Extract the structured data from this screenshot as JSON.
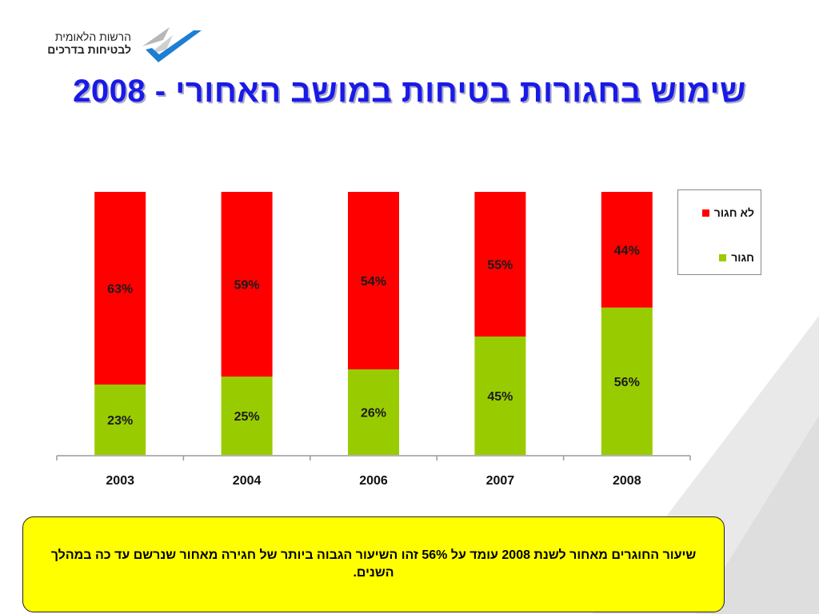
{
  "header": {
    "logo_line1": "הרשות הלאומית",
    "logo_line2": "לבטיחות בדרכים",
    "title": "שימוש בחגורות בטיחות במושב האחורי - 2008"
  },
  "chart_data": {
    "type": "bar",
    "stacked": true,
    "stack_mode": "percent",
    "categories": [
      "2003",
      "2004",
      "2006",
      "2007",
      "2008"
    ],
    "series": [
      {
        "name": "חגור",
        "color": "#99cc00",
        "values": [
          23,
          25,
          26,
          45,
          56
        ],
        "labels": [
          "23%",
          "25%",
          "26%",
          "45%",
          "56%"
        ]
      },
      {
        "name": "לא חגור",
        "color": "#ff0000",
        "values": [
          63,
          59,
          54,
          55,
          44
        ],
        "labels": [
          "63%",
          "59%",
          "54%",
          "55%",
          "44%"
        ]
      }
    ],
    "legend_position": "right",
    "grid": false
  },
  "legend": {
    "items": [
      {
        "label": "לא חגור",
        "color": "#ff0000"
      },
      {
        "label": "חגור",
        "color": "#99cc00"
      }
    ]
  },
  "note": {
    "text": "שיעור החוגרים מאחור לשנת 2008 עומד על 56% זהו השיעור הגבוה ביותר של חגירה מאחור שנרשם עד כה במהלך השנים."
  },
  "colors": {
    "title": "#1a1ae6",
    "note_background": "#ffff00",
    "logo_accent": "#1d7fd4"
  }
}
